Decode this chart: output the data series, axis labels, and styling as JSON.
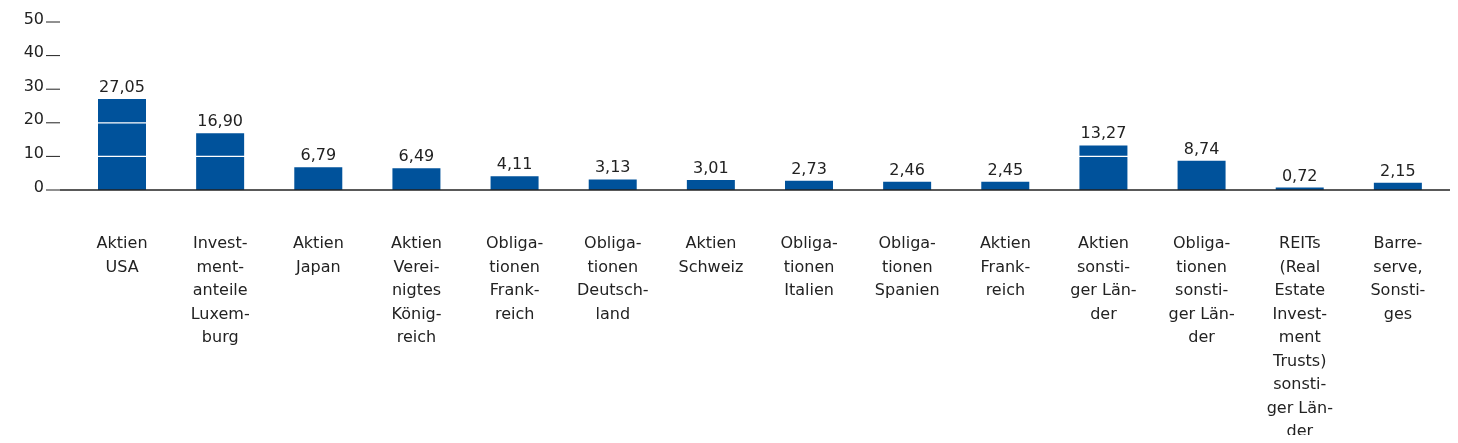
{
  "chart_data": {
    "type": "bar",
    "categories": [
      "Aktien\nUSA",
      "Invest-\nment-\nanteile\nLuxem-\nburg",
      "Aktien\nJapan",
      "Aktien\nVerei-\nnigtes\nKönig-\nreich",
      "Obliga-\ntionen\nFrank-\nreich",
      "Obliga-\ntionen\nDeutsch-\nland",
      "Aktien\nSchweiz",
      "Obliga-\ntionen\nItalien",
      "Obliga-\ntionen\nSpanien",
      "Aktien\nFrank-\nreich",
      "Aktien\nsonsti-\nger Län-\nder",
      "Obliga-\ntionen\nsonsti-\nger Län-\nder",
      "REITs\n(Real\nEstate\nInvest-\nment\nTrusts)\nsonsti-\nger Län-\nder",
      "Barre-\nserve,\nSonsti-\nges"
    ],
    "values": [
      27.05,
      16.9,
      6.79,
      6.49,
      4.11,
      3.13,
      3.01,
      2.73,
      2.46,
      2.45,
      13.27,
      8.74,
      0.72,
      2.15
    ],
    "value_labels": [
      "27,05",
      "16,90",
      "6,79",
      "6,49",
      "4,11",
      "3,13",
      "3,01",
      "2,73",
      "2,46",
      "2,45",
      "13,27",
      "8,74",
      "0,72",
      "2,15"
    ],
    "color": "#00529b",
    "ylim": [
      0,
      50
    ],
    "yticks": [
      0,
      10,
      20,
      30,
      40,
      50
    ],
    "grid": "y"
  }
}
